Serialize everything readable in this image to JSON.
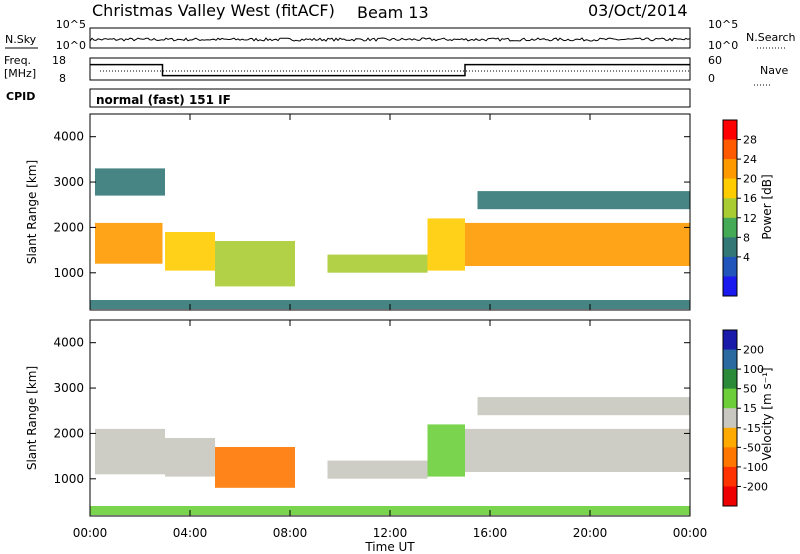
{
  "header": {
    "title": "Christmas Valley West (fitACF)",
    "beam": "Beam 13",
    "date": "03/Oct/2014"
  },
  "top_panels": {
    "nsky_label": "N.Sky",
    "nsearch_label": "N.Search",
    "freq_label": "Freq.",
    "freq_unit": "[MHz]",
    "nave_label": "Nave",
    "cpid_label": "CPID",
    "cpid_text": "normal (fast) 151 IF",
    "noise_ticks_left": [
      "10^5",
      "10^0"
    ],
    "noise_ticks_right": [
      "10^5",
      "10^0"
    ],
    "freq_ticks": [
      "18",
      "8"
    ],
    "nave_ticks": [
      "60",
      "0"
    ]
  },
  "colorbars": {
    "power": {
      "label": "Power [dB]",
      "ticks": [
        "28",
        "24",
        "20",
        "16",
        "12",
        "8",
        "4"
      ],
      "colors": [
        "#ff0000",
        "#ff5a00",
        "#ff9900",
        "#ffcc00",
        "#aacc33",
        "#44aa55",
        "#337777",
        "#2255bb",
        "#1a1aee"
      ]
    },
    "velocity": {
      "label": "Velocity [m s⁻¹]",
      "ticks": [
        "200",
        "100",
        "50",
        "15",
        "-15",
        "-50",
        "-100",
        "-200"
      ],
      "colors": [
        "#1a1aaa",
        "#2a6aa0",
        "#2a8a3a",
        "#6ccf3a",
        "#c8c8c0",
        "#ffaa00",
        "#ff7700",
        "#ff3300",
        "#ee0000"
      ]
    }
  },
  "chart_data": [
    {
      "type": "heatmap",
      "title": "Power",
      "ylabel": "Slant Range [km]",
      "xlabel": "Time UT",
      "x_ticks": [
        "00:00",
        "04:00",
        "08:00",
        "12:00",
        "16:00",
        "20:00",
        "00:00"
      ],
      "y_ticks": [
        1000,
        2000,
        3000,
        4000
      ],
      "xlim": [
        0,
        24
      ],
      "ylim": [
        180,
        4500
      ],
      "colorbar_range_db": [
        0,
        30
      ],
      "bands": [
        {
          "t": [
            0.2,
            2.9
          ],
          "range": [
            1200,
            2100
          ],
          "value_db": 24
        },
        {
          "t": [
            0.2,
            3.0
          ],
          "range": [
            2700,
            3300
          ],
          "value_db": 8
        },
        {
          "t": [
            3.0,
            5.0
          ],
          "range": [
            1050,
            1900
          ],
          "value_db": 20
        },
        {
          "t": [
            5.0,
            8.2
          ],
          "range": [
            700,
            1700
          ],
          "value_db": 16
        },
        {
          "t": [
            9.5,
            13.5
          ],
          "range": [
            1000,
            1400
          ],
          "value_db": 14
        },
        {
          "t": [
            13.5,
            15.0
          ],
          "range": [
            1050,
            2200
          ],
          "value_db": 20
        },
        {
          "t": [
            15.0,
            24.0
          ],
          "range": [
            1150,
            2100
          ],
          "value_db": 22
        },
        {
          "t": [
            15.5,
            24.0
          ],
          "range": [
            2400,
            2800
          ],
          "value_db": 8
        },
        {
          "t": [
            0.0,
            24.0
          ],
          "range": [
            200,
            400
          ],
          "value_db": 6
        }
      ]
    },
    {
      "type": "heatmap",
      "title": "Velocity",
      "ylabel": "Slant Range [km]",
      "xlabel": "Time UT",
      "x_ticks": [
        "00:00",
        "04:00",
        "08:00",
        "12:00",
        "16:00",
        "20:00",
        "00:00"
      ],
      "y_ticks": [
        1000,
        2000,
        3000,
        4000
      ],
      "xlim": [
        0,
        24
      ],
      "ylim": [
        180,
        4500
      ],
      "colorbar_range_ms": [
        -200,
        200
      ],
      "bands": [
        {
          "t": [
            0.2,
            3.0
          ],
          "range": [
            1100,
            2100
          ],
          "value_ms": 0
        },
        {
          "t": [
            3.0,
            5.0
          ],
          "range": [
            1050,
            1900
          ],
          "value_ms": 0
        },
        {
          "t": [
            5.0,
            8.2
          ],
          "range": [
            800,
            1700
          ],
          "value_ms": -60
        },
        {
          "t": [
            9.5,
            13.5
          ],
          "range": [
            1000,
            1400
          ],
          "value_ms": 0
        },
        {
          "t": [
            13.5,
            15.0
          ],
          "range": [
            1050,
            2200
          ],
          "value_ms": 30
        },
        {
          "t": [
            15.0,
            24.0
          ],
          "range": [
            1150,
            2100
          ],
          "value_ms": 0
        },
        {
          "t": [
            15.5,
            24.0
          ],
          "range": [
            2400,
            2800
          ],
          "value_ms": 0
        },
        {
          "t": [
            0.0,
            24.0
          ],
          "range": [
            200,
            400
          ],
          "value_ms": 20
        }
      ]
    }
  ],
  "frequency_series": {
    "points": [
      [
        0,
        15
      ],
      [
        2.9,
        15
      ],
      [
        2.9,
        10
      ],
      [
        15,
        10
      ],
      [
        15,
        15
      ],
      [
        24,
        15
      ]
    ],
    "ylim": [
      8,
      18
    ]
  }
}
